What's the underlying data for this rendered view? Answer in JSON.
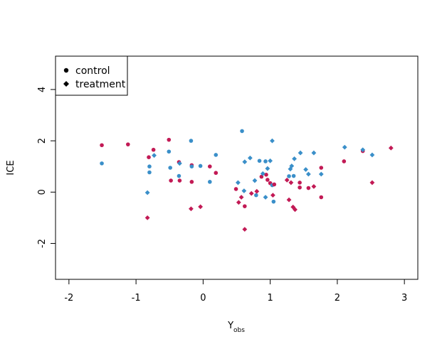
{
  "chart_data": {
    "type": "scatter",
    "xlabel_main": "Y",
    "xlabel_sub": "obs",
    "ylabel": "ICE",
    "xlim": [
      -2.2,
      3.2
    ],
    "ylim": [
      -3.4,
      5.3
    ],
    "xticks": [
      -2,
      -1,
      0,
      1,
      2,
      3
    ],
    "xtick_labels": [
      "-2",
      "-1",
      "0",
      "1",
      "2",
      "3"
    ],
    "yticks": [
      -2,
      0,
      2,
      4
    ],
    "ytick_labels": [
      "-2",
      "0",
      "2",
      "4"
    ],
    "grid": false,
    "legend": {
      "position": "top-left",
      "entries": [
        {
          "label": "control",
          "marker": "circle"
        },
        {
          "label": "treatment",
          "marker": "diamond"
        }
      ]
    },
    "colors": {
      "blue": "#3a8fc9",
      "magenta": "#c21a55"
    },
    "series": [
      {
        "name": "control",
        "marker": "circle",
        "points": [
          {
            "x": -1.51,
            "y": 1.83,
            "color": "magenta"
          },
          {
            "x": -1.51,
            "y": 1.12,
            "color": "blue"
          },
          {
            "x": -1.12,
            "y": 1.86,
            "color": "magenta"
          },
          {
            "x": -0.81,
            "y": 1.36,
            "color": "magenta"
          },
          {
            "x": -0.8,
            "y": 1.0,
            "color": "blue"
          },
          {
            "x": -0.8,
            "y": 0.77,
            "color": "blue"
          },
          {
            "x": -0.74,
            "y": 1.65,
            "color": "magenta"
          },
          {
            "x": -0.51,
            "y": 2.04,
            "color": "magenta"
          },
          {
            "x": -0.51,
            "y": 1.58,
            "color": "blue"
          },
          {
            "x": -0.49,
            "y": 0.95,
            "color": "blue"
          },
          {
            "x": -0.48,
            "y": 0.45,
            "color": "magenta"
          },
          {
            "x": -0.36,
            "y": 1.17,
            "color": "magenta"
          },
          {
            "x": -0.36,
            "y": 0.63,
            "color": "blue"
          },
          {
            "x": -0.35,
            "y": 0.45,
            "color": "magenta"
          },
          {
            "x": -0.18,
            "y": 2.0,
            "color": "blue"
          },
          {
            "x": -0.17,
            "y": 1.05,
            "color": "magenta"
          },
          {
            "x": -0.17,
            "y": 1.0,
            "color": "blue"
          },
          {
            "x": -0.17,
            "y": 0.4,
            "color": "magenta"
          },
          {
            "x": -0.04,
            "y": 1.02,
            "color": "blue"
          },
          {
            "x": 0.1,
            "y": 1.0,
            "color": "magenta"
          },
          {
            "x": 0.1,
            "y": 0.4,
            "color": "blue"
          },
          {
            "x": 0.19,
            "y": 1.45,
            "color": "blue"
          },
          {
            "x": 0.19,
            "y": 0.75,
            "color": "magenta"
          },
          {
            "x": 0.49,
            "y": 0.12,
            "color": "magenta"
          },
          {
            "x": 0.58,
            "y": 2.38,
            "color": "blue"
          },
          {
            "x": 0.62,
            "y": -0.55,
            "color": "magenta"
          },
          {
            "x": 0.79,
            "y": -0.12,
            "color": "blue"
          },
          {
            "x": 0.84,
            "y": 1.22,
            "color": "blue"
          },
          {
            "x": 0.87,
            "y": 0.6,
            "color": "magenta"
          },
          {
            "x": 0.93,
            "y": 1.2,
            "color": "blue"
          },
          {
            "x": 0.94,
            "y": 0.68,
            "color": "magenta"
          },
          {
            "x": 0.96,
            "y": 0.48,
            "color": "magenta"
          },
          {
            "x": 1.0,
            "y": 0.35,
            "color": "magenta"
          },
          {
            "x": 1.03,
            "y": 0.27,
            "color": "blue"
          },
          {
            "x": 1.05,
            "y": -0.37,
            "color": "blue"
          },
          {
            "x": 1.06,
            "y": 0.3,
            "color": "magenta"
          },
          {
            "x": 1.28,
            "y": 0.62,
            "color": "blue"
          },
          {
            "x": 1.35,
            "y": 0.63,
            "color": "blue"
          },
          {
            "x": 1.44,
            "y": 0.37,
            "color": "magenta"
          },
          {
            "x": 1.44,
            "y": 0.18,
            "color": "magenta"
          },
          {
            "x": 1.57,
            "y": 0.16,
            "color": "magenta"
          },
          {
            "x": 1.76,
            "y": 0.95,
            "color": "magenta"
          },
          {
            "x": 1.76,
            "y": -0.2,
            "color": "magenta"
          },
          {
            "x": 2.1,
            "y": 1.2,
            "color": "magenta"
          },
          {
            "x": 2.38,
            "y": 1.6,
            "color": "magenta"
          }
        ]
      },
      {
        "name": "treatment",
        "marker": "diamond",
        "points": [
          {
            "x": -0.83,
            "y": -0.02,
            "color": "blue"
          },
          {
            "x": -0.83,
            "y": -1.0,
            "color": "magenta"
          },
          {
            "x": -0.73,
            "y": 1.43,
            "color": "blue"
          },
          {
            "x": -0.35,
            "y": 1.12,
            "color": "blue"
          },
          {
            "x": -0.18,
            "y": -0.65,
            "color": "magenta"
          },
          {
            "x": -0.04,
            "y": -0.57,
            "color": "magenta"
          },
          {
            "x": 0.52,
            "y": 0.37,
            "color": "blue"
          },
          {
            "x": 0.53,
            "y": -0.4,
            "color": "magenta"
          },
          {
            "x": 0.57,
            "y": -0.2,
            "color": "magenta"
          },
          {
            "x": 0.61,
            "y": 0.05,
            "color": "blue"
          },
          {
            "x": 0.62,
            "y": 1.18,
            "color": "blue"
          },
          {
            "x": 0.62,
            "y": -1.45,
            "color": "magenta"
          },
          {
            "x": 0.7,
            "y": 1.33,
            "color": "blue"
          },
          {
            "x": 0.72,
            "y": -0.05,
            "color": "magenta"
          },
          {
            "x": 0.77,
            "y": 0.45,
            "color": "blue"
          },
          {
            "x": 0.8,
            "y": 0.03,
            "color": "magenta"
          },
          {
            "x": 0.89,
            "y": 0.72,
            "color": "blue"
          },
          {
            "x": 0.93,
            "y": -0.2,
            "color": "blue"
          },
          {
            "x": 0.96,
            "y": 0.92,
            "color": "blue"
          },
          {
            "x": 1.0,
            "y": 1.22,
            "color": "blue"
          },
          {
            "x": 1.03,
            "y": 2.0,
            "color": "blue"
          },
          {
            "x": 1.04,
            "y": -0.12,
            "color": "magenta"
          },
          {
            "x": 1.25,
            "y": 0.47,
            "color": "magenta"
          },
          {
            "x": 1.28,
            "y": -0.3,
            "color": "magenta"
          },
          {
            "x": 1.3,
            "y": 0.9,
            "color": "blue"
          },
          {
            "x": 1.31,
            "y": 0.37,
            "color": "magenta"
          },
          {
            "x": 1.32,
            "y": 1.02,
            "color": "blue"
          },
          {
            "x": 1.34,
            "y": -0.58,
            "color": "magenta"
          },
          {
            "x": 1.36,
            "y": 1.3,
            "color": "blue"
          },
          {
            "x": 1.37,
            "y": -0.68,
            "color": "magenta"
          },
          {
            "x": 1.45,
            "y": 1.53,
            "color": "blue"
          },
          {
            "x": 1.53,
            "y": 0.88,
            "color": "blue"
          },
          {
            "x": 1.57,
            "y": 0.7,
            "color": "blue"
          },
          {
            "x": 1.65,
            "y": 1.53,
            "color": "blue"
          },
          {
            "x": 1.65,
            "y": 0.22,
            "color": "magenta"
          },
          {
            "x": 1.76,
            "y": 0.7,
            "color": "blue"
          },
          {
            "x": 2.11,
            "y": 1.75,
            "color": "blue"
          },
          {
            "x": 2.38,
            "y": 1.65,
            "color": "blue"
          },
          {
            "x": 2.52,
            "y": 1.45,
            "color": "blue"
          },
          {
            "x": 2.52,
            "y": 0.37,
            "color": "magenta"
          },
          {
            "x": 2.8,
            "y": 1.72,
            "color": "magenta"
          }
        ]
      }
    ]
  }
}
